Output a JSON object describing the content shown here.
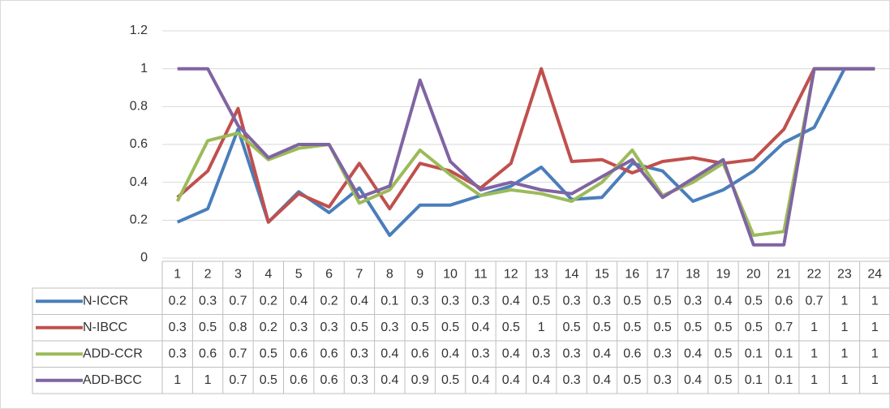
{
  "chart_data": {
    "type": "line",
    "categories": [
      "1",
      "2",
      "3",
      "4",
      "5",
      "6",
      "7",
      "8",
      "9",
      "10",
      "11",
      "12",
      "13",
      "14",
      "15",
      "16",
      "17",
      "18",
      "19",
      "20",
      "21",
      "22",
      "23",
      "24"
    ],
    "ylim": [
      0,
      1.2
    ],
    "yticks": [
      0,
      0.2,
      0.4,
      0.6,
      0.8,
      1,
      1.2
    ],
    "grid": true,
    "series": [
      {
        "name": "N-ICCR",
        "color": "#4a7ebb",
        "values": [
          0.19,
          0.26,
          0.68,
          0.19,
          0.35,
          0.24,
          0.37,
          0.12,
          0.28,
          0.28,
          0.33,
          0.38,
          0.48,
          0.31,
          0.32,
          0.5,
          0.46,
          0.3,
          0.36,
          0.46,
          0.61,
          0.69,
          1,
          1
        ],
        "value_labels": [
          "0.2",
          "0.3",
          "0.7",
          "0.2",
          "0.4",
          "0.2",
          "0.4",
          "0.1",
          "0.3",
          "0.3",
          "0.3",
          "0.4",
          "0.5",
          "0.3",
          "0.3",
          "0.5",
          "0.5",
          "0.3",
          "0.4",
          "0.5",
          "0.6",
          "0.7",
          "1",
          "1"
        ]
      },
      {
        "name": "N-IBCC",
        "color": "#c0504d",
        "values": [
          0.32,
          0.46,
          0.79,
          0.19,
          0.34,
          0.27,
          0.5,
          0.26,
          0.5,
          0.46,
          0.37,
          0.5,
          1,
          0.51,
          0.52,
          0.45,
          0.51,
          0.53,
          0.5,
          0.52,
          0.68,
          1,
          1,
          1
        ],
        "value_labels": [
          "0.3",
          "0.5",
          "0.8",
          "0.2",
          "0.3",
          "0.3",
          "0.5",
          "0.3",
          "0.5",
          "0.5",
          "0.4",
          "0.5",
          "1",
          "0.5",
          "0.5",
          "0.5",
          "0.5",
          "0.5",
          "0.5",
          "0.5",
          "0.7",
          "1",
          "1",
          "1"
        ]
      },
      {
        "name": "ADD-CCR",
        "color": "#9bbb59",
        "values": [
          0.3,
          0.62,
          0.66,
          0.52,
          0.58,
          0.6,
          0.29,
          0.36,
          0.57,
          0.44,
          0.33,
          0.36,
          0.34,
          0.3,
          0.4,
          0.57,
          0.33,
          0.4,
          0.5,
          0.12,
          0.14,
          1,
          1,
          1
        ],
        "value_labels": [
          "0.3",
          "0.6",
          "0.7",
          "0.5",
          "0.6",
          "0.6",
          "0.3",
          "0.4",
          "0.6",
          "0.4",
          "0.3",
          "0.4",
          "0.3",
          "0.3",
          "0.4",
          "0.6",
          "0.3",
          "0.4",
          "0.5",
          "0.1",
          "0.1",
          "1",
          "1",
          "1"
        ]
      },
      {
        "name": "ADD-BCC",
        "color": "#8064a2",
        "values": [
          1,
          1,
          0.7,
          0.53,
          0.6,
          0.6,
          0.32,
          0.38,
          0.94,
          0.51,
          0.36,
          0.4,
          0.36,
          0.34,
          0.43,
          0.52,
          0.32,
          0.42,
          0.52,
          0.07,
          0.07,
          1,
          1,
          1
        ],
        "value_labels": [
          "1",
          "1",
          "0.7",
          "0.5",
          "0.6",
          "0.6",
          "0.3",
          "0.4",
          "0.9",
          "0.5",
          "0.4",
          "0.4",
          "0.4",
          "0.3",
          "0.4",
          "0.5",
          "0.3",
          "0.4",
          "0.5",
          "0.1",
          "0.1",
          "1",
          "1",
          "1"
        ]
      }
    ]
  }
}
